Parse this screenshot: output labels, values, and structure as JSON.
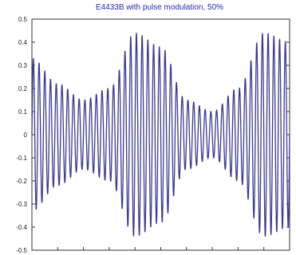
{
  "chart_data": {
    "type": "line",
    "title": "E4433B with pulse modulation, 50%",
    "xlabel": "",
    "ylabel": "",
    "ylim": [
      -0.5,
      0.5
    ],
    "yticks": [
      "0.5",
      "0.4",
      "0.3",
      "0.2",
      "0.1",
      "0",
      "-0.1",
      "-0.2",
      "-0.3",
      "-0.4",
      "-0.5"
    ],
    "ytick_values": [
      0.5,
      0.4,
      0.3,
      0.2,
      0.1,
      0,
      -0.1,
      -0.2,
      -0.3,
      -0.4,
      -0.5
    ],
    "xlim": [
      0,
      1
    ],
    "grid": false,
    "series": [
      {
        "color": "#3a3a8c",
        "x": [
          0,
          0.1,
          0.2,
          0.3,
          0.4,
          0.5,
          0.6,
          0.7,
          0.8,
          0.9,
          1.0
        ],
        "envelope_upper": [
          0.33,
          0.22,
          0.15,
          0.2,
          0.44,
          0.38,
          0.15,
          0.1,
          0.2,
          0.44,
          0.4
        ],
        "envelope_lower": [
          -0.33,
          -0.22,
          -0.15,
          -0.2,
          -0.44,
          -0.38,
          -0.15,
          -0.1,
          -0.2,
          -0.44,
          -0.4
        ],
        "oscillation_cycles": 45
      }
    ]
  }
}
